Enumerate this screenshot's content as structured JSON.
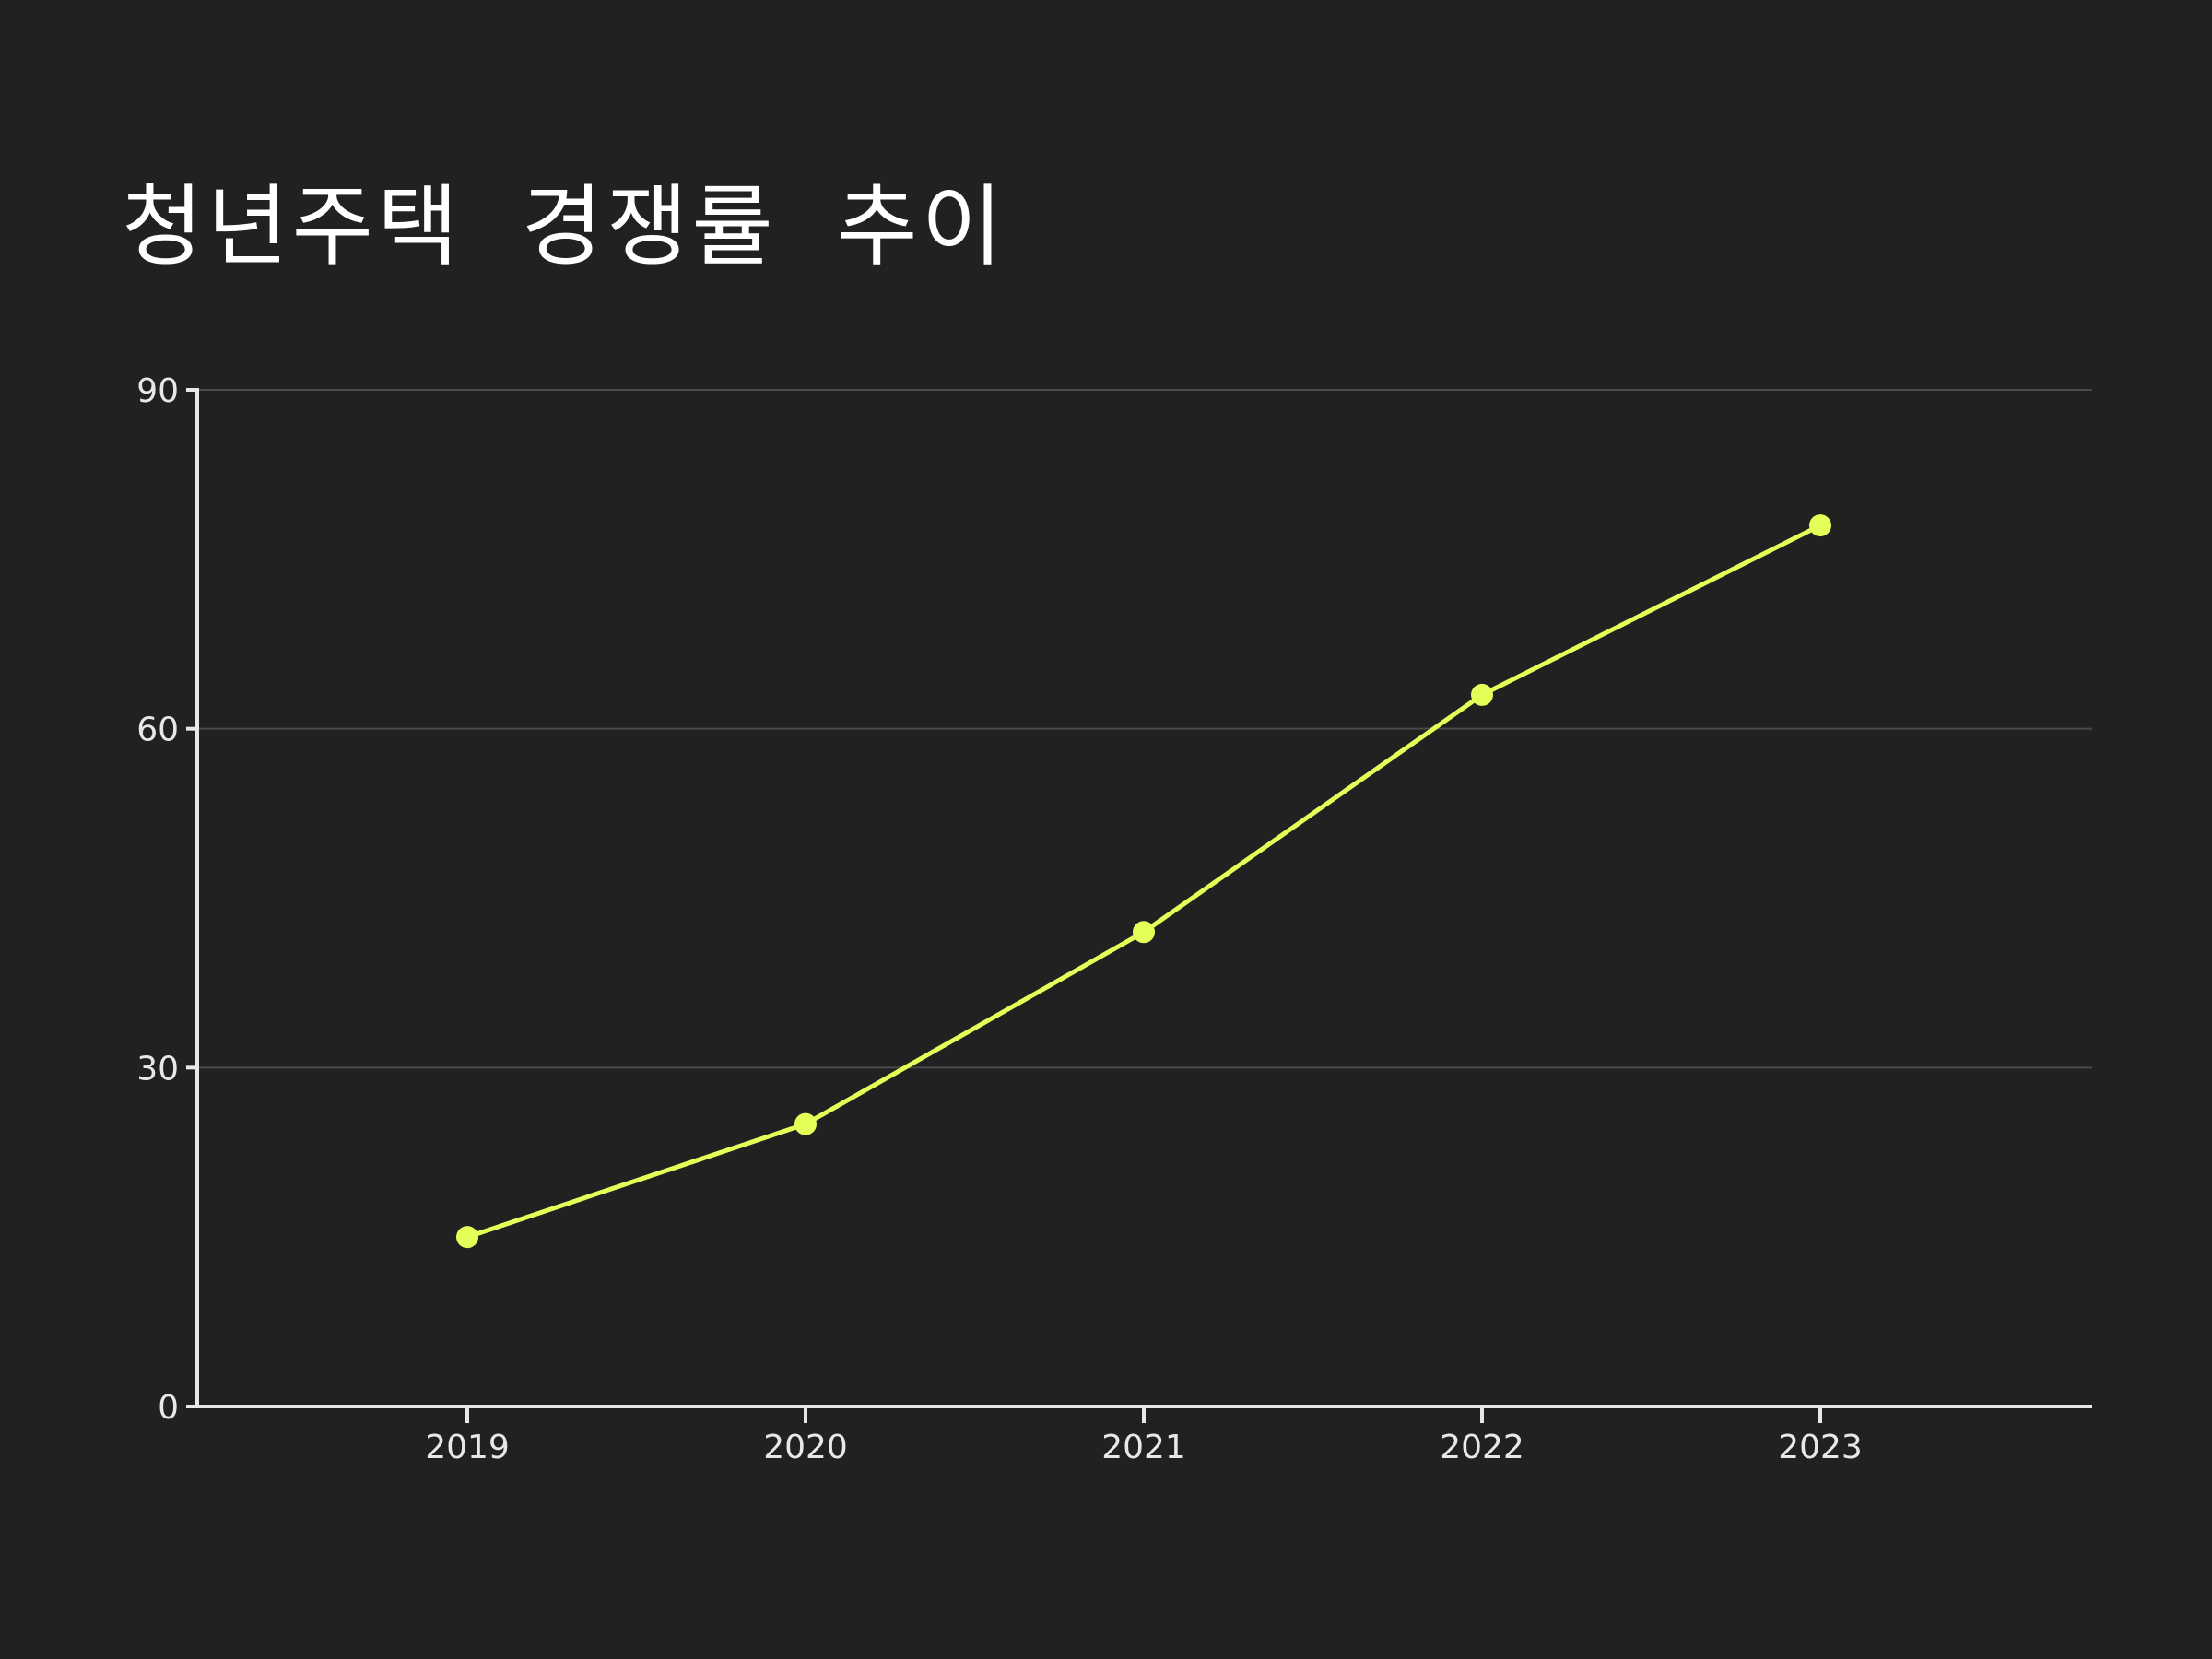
{
  "chart_data": {
    "type": "line",
    "title": "청년주택 경쟁률 추이",
    "xlabel": "",
    "ylabel": "",
    "categories": [
      "2019",
      "2020",
      "2021",
      "2022",
      "2023"
    ],
    "series": [
      {
        "values": [
          15,
          25,
          42,
          63,
          78
        ]
      }
    ],
    "ylim": [
      0,
      90
    ],
    "yticks": [
      0,
      30,
      60,
      90
    ],
    "grid": true,
    "legend": "none"
  },
  "colors": {
    "background": "#212121",
    "line": "#e4ff58",
    "marker": "#e4ff58",
    "grid": "#4a4a4a",
    "axis": "#e8e8e8",
    "text": "#ffffff"
  }
}
